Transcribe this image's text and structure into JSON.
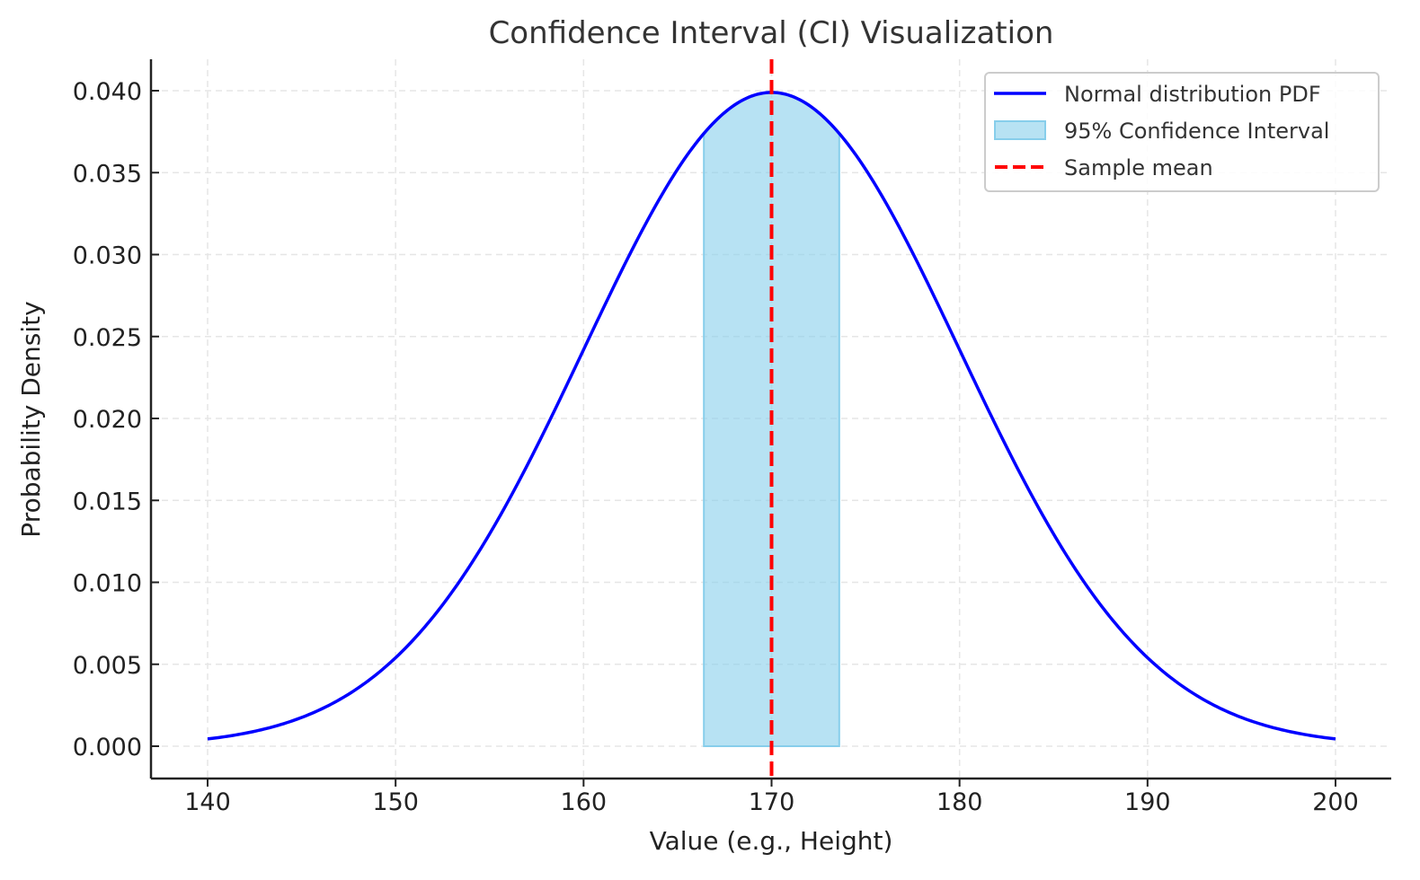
{
  "chart_data": {
    "type": "line",
    "title": "Confidence Interval (CI) Visualization",
    "xlabel": "Value (e.g., Height)",
    "ylabel": "Probability Density",
    "xlim": [
      137,
      203
    ],
    "ylim": [
      -0.002,
      0.042
    ],
    "x_ticks": [
      140,
      150,
      160,
      170,
      180,
      190,
      200
    ],
    "x_tick_labels": [
      "140",
      "150",
      "160",
      "170",
      "180",
      "190",
      "200"
    ],
    "y_ticks": [
      0.0,
      0.005,
      0.01,
      0.015,
      0.02,
      0.025,
      0.03,
      0.035,
      0.04
    ],
    "y_tick_labels": [
      "0.000",
      "0.005",
      "0.010",
      "0.015",
      "0.020",
      "0.025",
      "0.030",
      "0.035",
      "0.040"
    ],
    "grid": true,
    "legend_position": "top-right",
    "series": [
      {
        "name": "Normal distribution PDF",
        "kind": "line",
        "color": "#0000ff",
        "mean": 170,
        "std": 10,
        "x_range": [
          140,
          200
        ]
      },
      {
        "name": "95% Confidence Interval",
        "kind": "fill",
        "color": "#87ceeb",
        "x_range": [
          166.4,
          173.6
        ]
      },
      {
        "name": "Sample mean",
        "kind": "vline",
        "color": "#ff0000",
        "x": 170
      }
    ]
  }
}
